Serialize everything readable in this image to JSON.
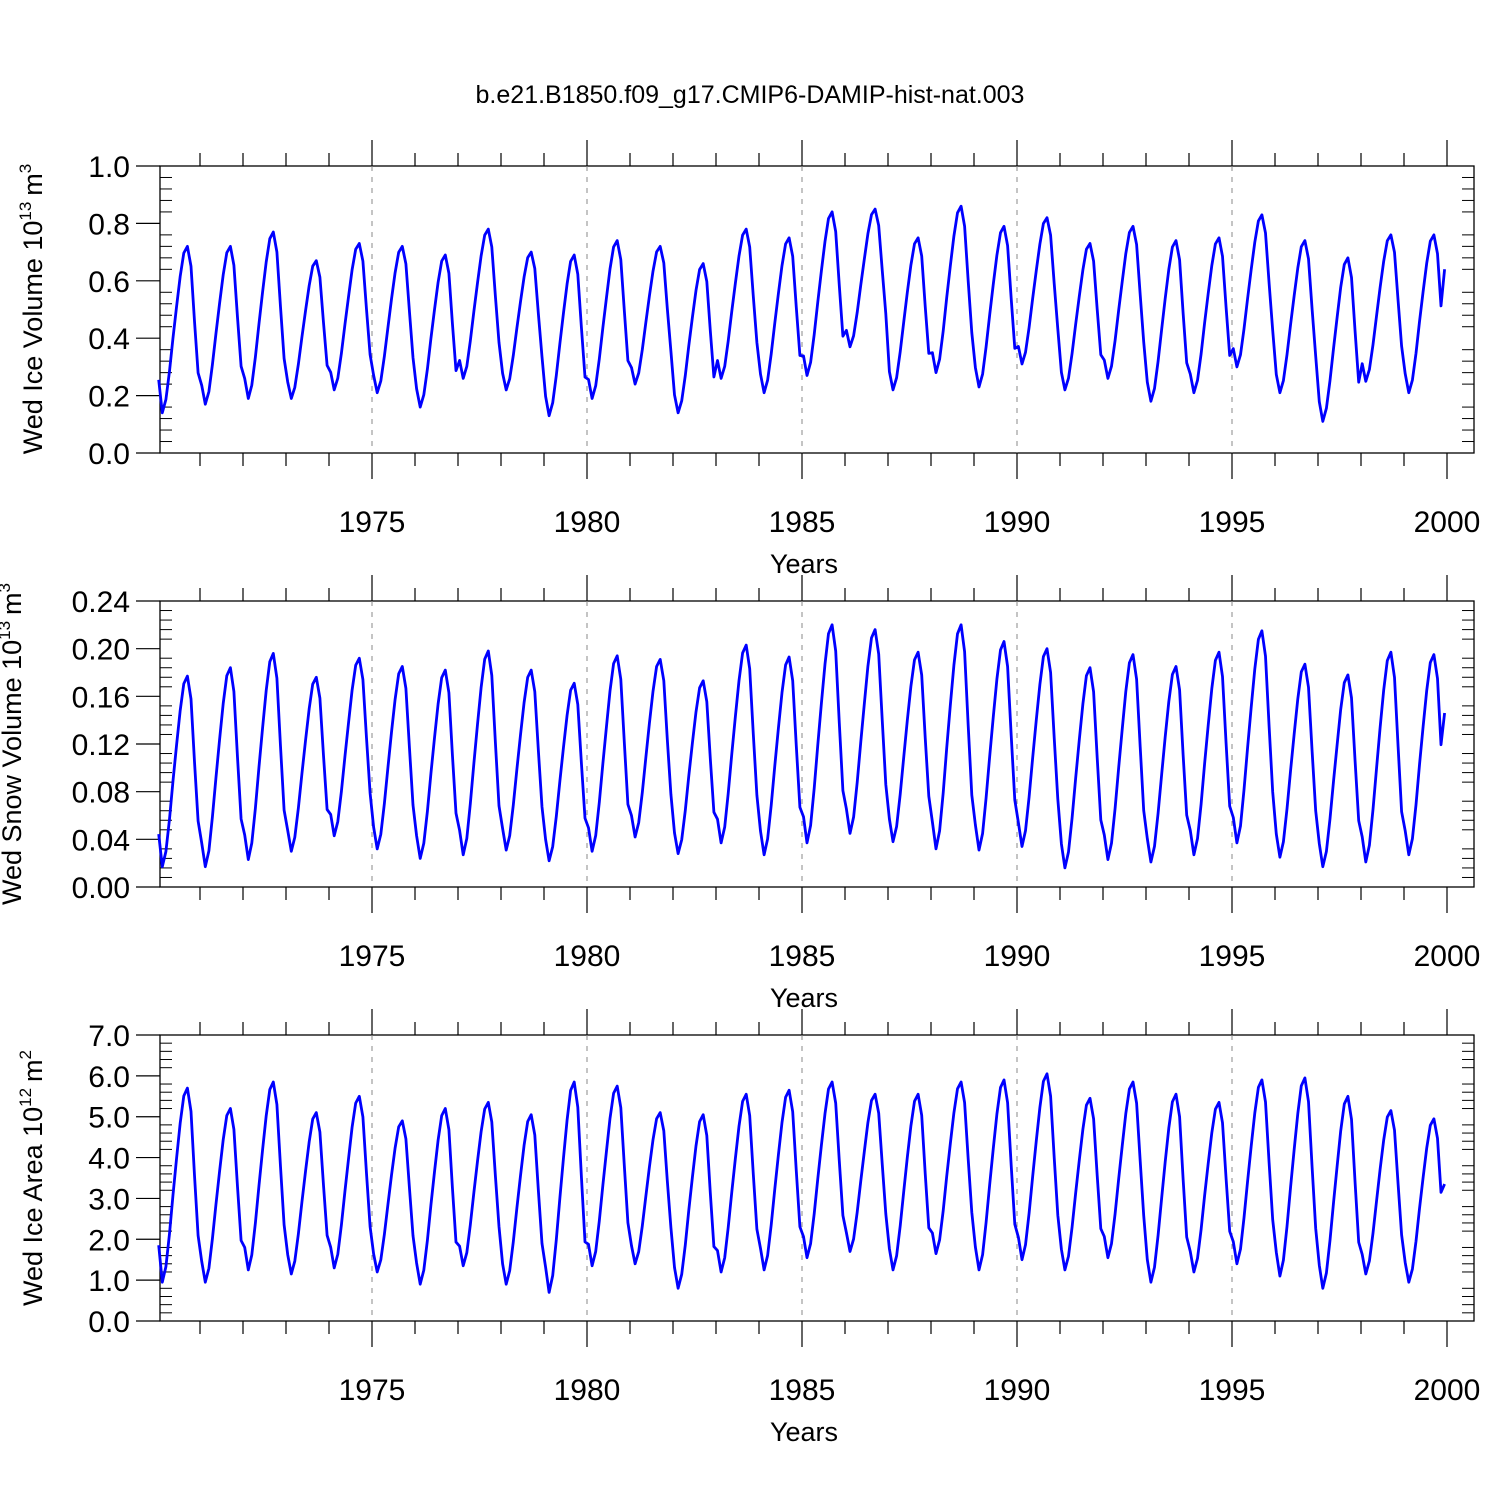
{
  "figure": {
    "title": "b.e21.B1850.f09_g17.CMIP6-DAMIP-hist-nat.003"
  },
  "chart_data": [
    {
      "type": "line",
      "panel": "ice-volume",
      "title": "",
      "xlabel": "Years",
      "ylabel": {
        "text": "Wed Ice Volume 10",
        "exponent": "13",
        "unit": "m",
        "unit_exponent": "3"
      },
      "xlim": [
        1970,
        2000
      ],
      "ylim": [
        0.0,
        1.0
      ],
      "xticks": [
        1975,
        1980,
        1985,
        1990,
        1995,
        2000
      ],
      "xtick_labels": [
        "1975",
        "1980",
        "1985",
        "1990",
        "1995",
        "2000"
      ],
      "yticks": [
        0.0,
        0.2,
        0.4,
        0.6,
        0.8,
        1.0
      ],
      "ytick_labels": [
        "0.0",
        "0.2",
        "0.4",
        "0.6",
        "0.8",
        "1.0"
      ],
      "grid": "dashed vertical lines at each 5-year tick",
      "series_color": "#0000ff",
      "series": [
        {
          "name": "Wed Ice Volume",
          "start_year": 1970.04,
          "step": 0.0833,
          "annual_min": [
            0.14,
            0.17,
            0.19,
            0.19,
            0.22,
            0.21,
            0.16,
            0.26,
            0.22,
            0.13,
            0.19,
            0.24,
            0.14,
            0.26,
            0.21,
            0.27,
            0.37,
            0.22,
            0.28,
            0.23,
            0.31,
            0.22,
            0.26,
            0.18,
            0.21,
            0.3,
            0.21,
            0.11,
            0.25,
            0.21
          ],
          "annual_max": [
            0.72,
            0.72,
            0.77,
            0.67,
            0.73,
            0.72,
            0.69,
            0.78,
            0.7,
            0.69,
            0.74,
            0.72,
            0.66,
            0.78,
            0.75,
            0.84,
            0.85,
            0.75,
            0.86,
            0.79,
            0.82,
            0.73,
            0.79,
            0.74,
            0.75,
            0.83,
            0.74,
            0.68,
            0.76,
            0.76
          ],
          "final_value": 0.64
        }
      ]
    },
    {
      "type": "line",
      "panel": "snow-volume",
      "title": "",
      "xlabel": "Years",
      "ylabel": {
        "text": "Wed Snow Volume 10",
        "exponent": "13",
        "unit": "m",
        "unit_exponent": "3"
      },
      "xlim": [
        1970,
        2000
      ],
      "ylim": [
        0.0,
        0.24
      ],
      "xticks": [
        1975,
        1980,
        1985,
        1990,
        1995,
        2000
      ],
      "xtick_labels": [
        "1975",
        "1980",
        "1985",
        "1990",
        "1995",
        "2000"
      ],
      "yticks": [
        0.0,
        0.04,
        0.08,
        0.12,
        0.16,
        0.2,
        0.24
      ],
      "ytick_labels": [
        "0.00",
        "0.04",
        "0.08",
        "0.12",
        "0.16",
        "0.20",
        "0.24"
      ],
      "grid": "dashed vertical lines at each 5-year tick",
      "series_color": "#0000ff",
      "series": [
        {
          "name": "Wed Snow Volume",
          "start_year": 1970.04,
          "step": 0.0833,
          "annual_min": [
            0.017,
            0.017,
            0.023,
            0.03,
            0.043,
            0.032,
            0.024,
            0.027,
            0.031,
            0.022,
            0.03,
            0.042,
            0.028,
            0.037,
            0.027,
            0.037,
            0.045,
            0.038,
            0.032,
            0.031,
            0.034,
            0.016,
            0.023,
            0.021,
            0.027,
            0.037,
            0.025,
            0.017,
            0.021,
            0.027
          ],
          "annual_max": [
            0.177,
            0.184,
            0.196,
            0.176,
            0.192,
            0.185,
            0.182,
            0.198,
            0.182,
            0.171,
            0.194,
            0.191,
            0.173,
            0.203,
            0.193,
            0.22,
            0.216,
            0.197,
            0.22,
            0.206,
            0.2,
            0.184,
            0.195,
            0.185,
            0.197,
            0.215,
            0.187,
            0.178,
            0.197,
            0.195
          ],
          "final_value": 0.146
        }
      ]
    },
    {
      "type": "line",
      "panel": "ice-area",
      "title": "",
      "xlabel": "Years",
      "ylabel": {
        "text": "Wed Ice Area 10",
        "exponent": "12",
        "unit": "m",
        "unit_exponent": "2"
      },
      "xlim": [
        1970,
        2000
      ],
      "ylim": [
        0.0,
        7.0
      ],
      "xticks": [
        1975,
        1980,
        1985,
        1990,
        1995,
        2000
      ],
      "xtick_labels": [
        "1975",
        "1980",
        "1985",
        "1990",
        "1995",
        "2000"
      ],
      "yticks": [
        0.0,
        1.0,
        2.0,
        3.0,
        4.0,
        5.0,
        6.0,
        7.0
      ],
      "ytick_labels": [
        "0.0",
        "1.0",
        "2.0",
        "3.0",
        "4.0",
        "5.0",
        "6.0",
        "7.0"
      ],
      "grid": "dashed vertical lines at each 5-year tick",
      "series_color": "#0000ff",
      "series": [
        {
          "name": "Wed Ice Area",
          "start_year": 1970.04,
          "step": 0.0833,
          "annual_min": [
            0.95,
            0.95,
            1.25,
            1.15,
            1.3,
            1.2,
            0.9,
            1.35,
            0.9,
            0.7,
            1.35,
            1.4,
            0.8,
            1.2,
            1.25,
            1.55,
            1.7,
            1.25,
            1.65,
            1.25,
            1.5,
            1.25,
            1.55,
            0.95,
            1.2,
            1.4,
            1.1,
            0.8,
            1.15,
            0.95
          ],
          "annual_max": [
            5.7,
            5.2,
            5.85,
            5.1,
            5.5,
            4.9,
            5.2,
            5.35,
            5.05,
            5.85,
            5.75,
            5.1,
            5.05,
            5.55,
            5.65,
            5.85,
            5.55,
            5.55,
            5.85,
            5.9,
            6.05,
            5.45,
            5.85,
            5.55,
            5.35,
            5.9,
            5.95,
            5.5,
            5.15,
            4.95
          ],
          "final_value": 3.35
        }
      ]
    }
  ]
}
